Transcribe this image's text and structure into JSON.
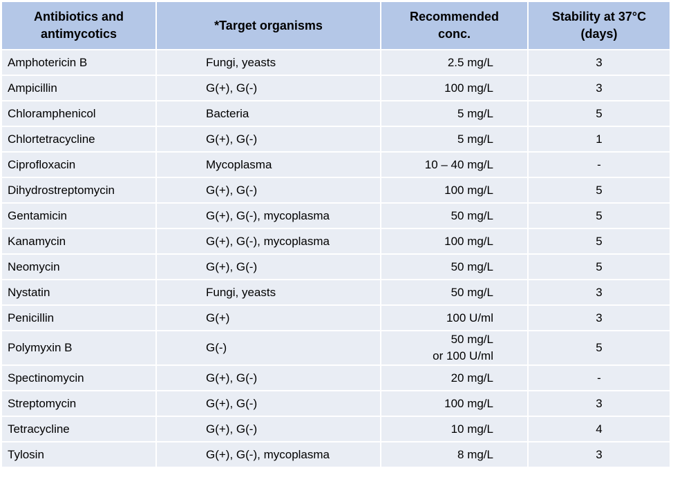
{
  "table": {
    "headers": {
      "col1_line1": "Antibiotics and",
      "col1_line2": "antimycotics",
      "col2": "*Target organisms",
      "col3_line1": "Recommended",
      "col3_line2": "conc.",
      "col4_line1": "Stability at 37°C",
      "col4_line2": "(days)"
    },
    "rows": [
      {
        "name": "Amphotericin B",
        "target": "Fungi, yeasts",
        "conc": "2.5 mg/L",
        "stability": "3"
      },
      {
        "name": "Ampicillin",
        "target": "G(+), G(-)",
        "conc": "100 mg/L",
        "stability": "3"
      },
      {
        "name": "Chloramphenicol",
        "target": "Bacteria",
        "conc": "5 mg/L",
        "stability": "5"
      },
      {
        "name": "Chlortetracycline",
        "target": "G(+), G(-)",
        "conc": "5 mg/L",
        "stability": "1"
      },
      {
        "name": "Ciprofloxacin",
        "target": "Mycoplasma",
        "conc": "10 – 40 mg/L",
        "stability": "-"
      },
      {
        "name": "Dihydrostreptomycin",
        "target": "G(+), G(-)",
        "conc": "100 mg/L",
        "stability": "5"
      },
      {
        "name": "Gentamicin",
        "target": "G(+), G(-), mycoplasma",
        "conc": "50 mg/L",
        "stability": "5"
      },
      {
        "name": "Kanamycin",
        "target": "G(+), G(-), mycoplasma",
        "conc": "100 mg/L",
        "stability": "5"
      },
      {
        "name": "Neomycin",
        "target": "G(+), G(-)",
        "conc": "50 mg/L",
        "stability": "5"
      },
      {
        "name": "Nystatin",
        "target": "Fungi, yeasts",
        "conc": "50 mg/L",
        "stability": "3"
      },
      {
        "name": "Penicillin",
        "target": "G(+)",
        "conc": "100 U/ml",
        "stability": "3"
      },
      {
        "name": "Polymyxin B",
        "target": "G(-)",
        "conc_line1": "50 mg/L",
        "conc_line2": "or 100 U/ml",
        "stability": "5"
      },
      {
        "name": "Spectinomycin",
        "target": "G(+), G(-)",
        "conc": "20 mg/L",
        "stability": "-"
      },
      {
        "name": "Streptomycin",
        "target": "G(+), G(-)",
        "conc": "100 mg/L",
        "stability": "3"
      },
      {
        "name": "Tetracycline",
        "target": "G(+), G(-)",
        "conc": "10 mg/L",
        "stability": "4"
      },
      {
        "name": "Tylosin",
        "target": "G(+), G(-), mycoplasma",
        "conc": "8 mg/L",
        "stability": "3"
      }
    ],
    "colors": {
      "header_bg": "#b4c7e7",
      "row_bg": "#e9edf4",
      "grid_lines": "#ffffff"
    }
  }
}
